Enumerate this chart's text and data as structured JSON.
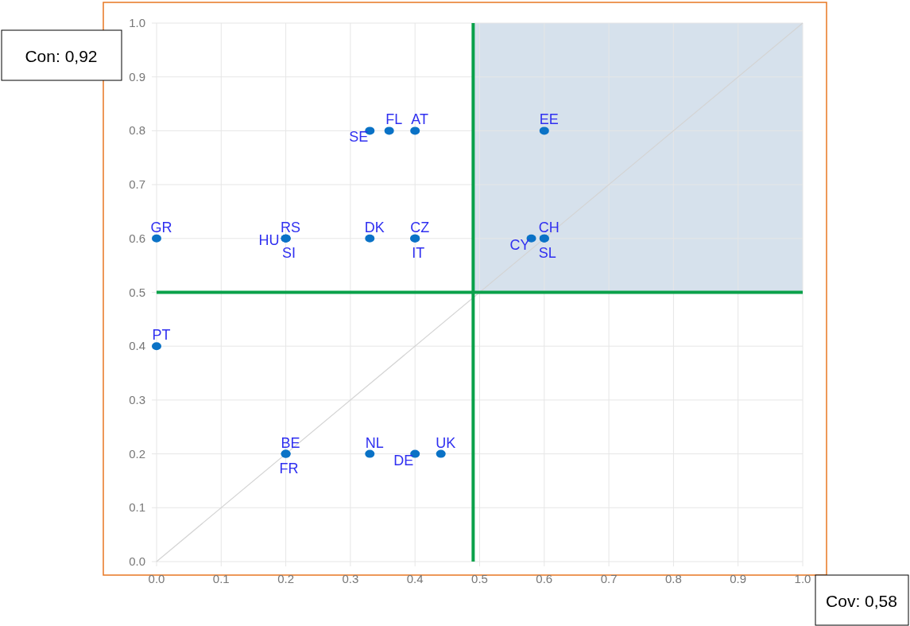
{
  "chart_data": {
    "type": "scatter",
    "xlim": [
      0,
      1
    ],
    "ylim": [
      0,
      1
    ],
    "xticks": [
      {
        "value": 0,
        "label": "0.0"
      },
      0.1,
      0.2,
      0.3,
      0.4,
      0.5,
      0.6,
      0.7,
      0.8,
      0.9,
      {
        "value": 1,
        "label": "1.0"
      }
    ],
    "yticks": [
      {
        "value": 0,
        "label": "0.0"
      },
      0.1,
      0.2,
      0.3,
      0.4,
      0.5,
      0.6,
      0.7,
      0.8,
      0.9,
      {
        "value": 1,
        "label": "1.0"
      }
    ],
    "grid": true,
    "marker": "circle",
    "series": [
      {
        "type": "line",
        "marker": "none",
        "color": "#d4d4d4",
        "x": [
          0,
          1
        ],
        "values": [
          0,
          1
        ]
      },
      {
        "color": "#0a72c6",
        "x": [
          0.33,
          0.36,
          0.4,
          0.6,
          0,
          0.2,
          0.2,
          0.2,
          0.33,
          0.4,
          0.4,
          0.58,
          0.6,
          0.6,
          0,
          0.2,
          0.2,
          0.33,
          0.4,
          0.44
        ],
        "values": [
          0.8,
          0.8,
          0.8,
          0.8,
          0.6,
          0.6,
          0.6,
          0.6,
          0.6,
          0.6,
          0.6,
          0.6,
          0.6,
          0.6,
          0.4,
          0.2,
          0.2,
          0.2,
          0.2,
          0.2
        ],
        "value_labels": [
          "SE",
          "FL",
          "AT",
          "EE",
          "GR",
          "RS",
          "SI",
          "HU",
          "DK",
          "CZ",
          "IT",
          "CY",
          "CH",
          "SL",
          "PT",
          "BE",
          "FR",
          "NL",
          "DE",
          "UK"
        ]
      }
    ],
    "ref_lines": [
      {
        "axis": "x",
        "value": 0.49,
        "color": "#0aa14a"
      },
      {
        "axis": "y",
        "value": 0.5,
        "color": "#0aa14a"
      }
    ],
    "bands": [
      {
        "axis": "x",
        "from": 0.49,
        "to": 1,
        "color": "#d6e1ec"
      }
    ],
    "annotations": [
      "Con: 0,92",
      "Cov: 0,58"
    ]
  }
}
